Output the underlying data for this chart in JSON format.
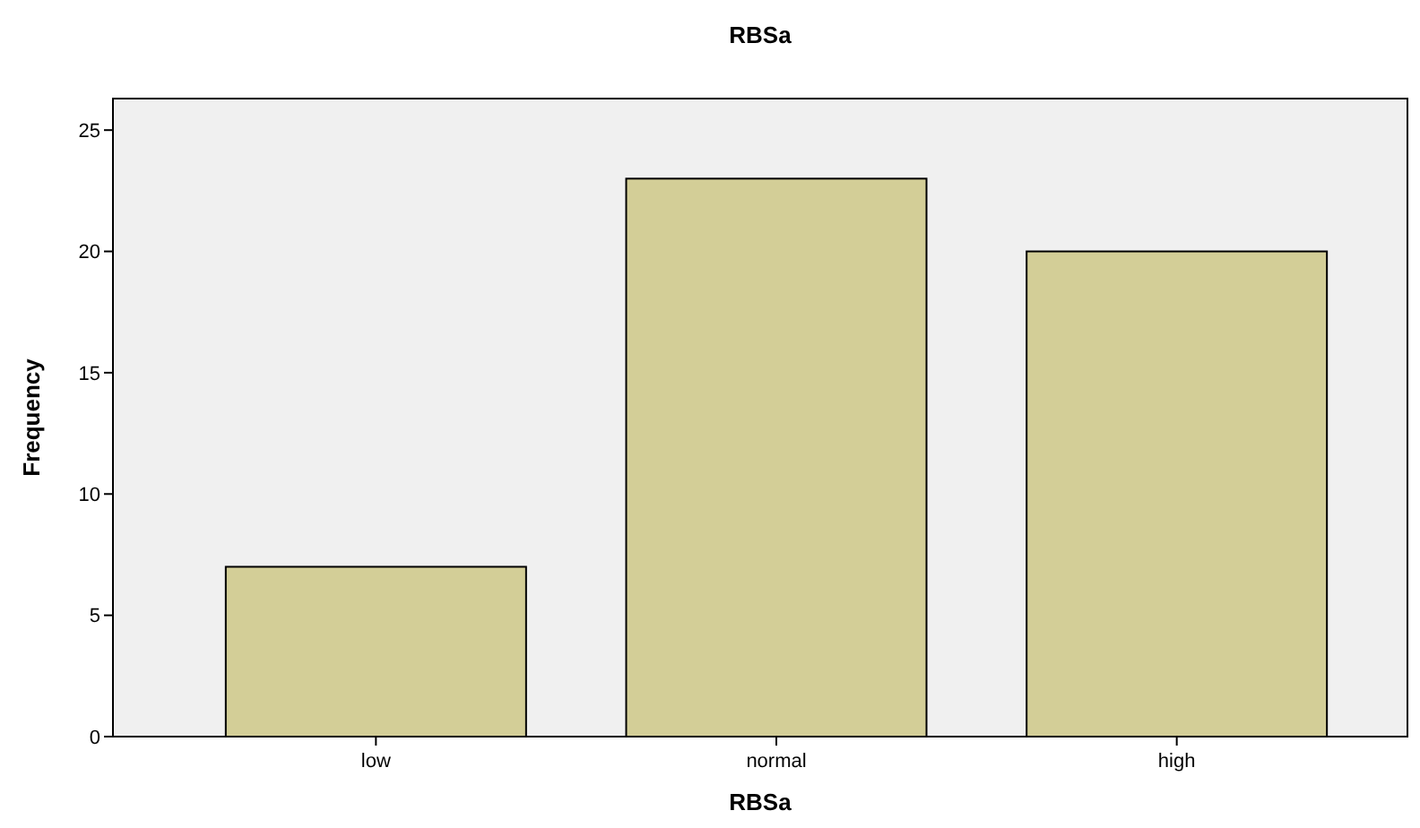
{
  "chart_data": {
    "type": "bar",
    "title": "RBSa",
    "xlabel": "RBSa",
    "ylabel": "Frequency",
    "categories": [
      "low",
      "normal",
      "high"
    ],
    "values": [
      7,
      23,
      20
    ],
    "color": "#d3ce97",
    "ylim": [
      0,
      26.3
    ],
    "yticks": [
      0,
      5,
      10,
      15,
      20,
      25
    ],
    "grid": false
  }
}
